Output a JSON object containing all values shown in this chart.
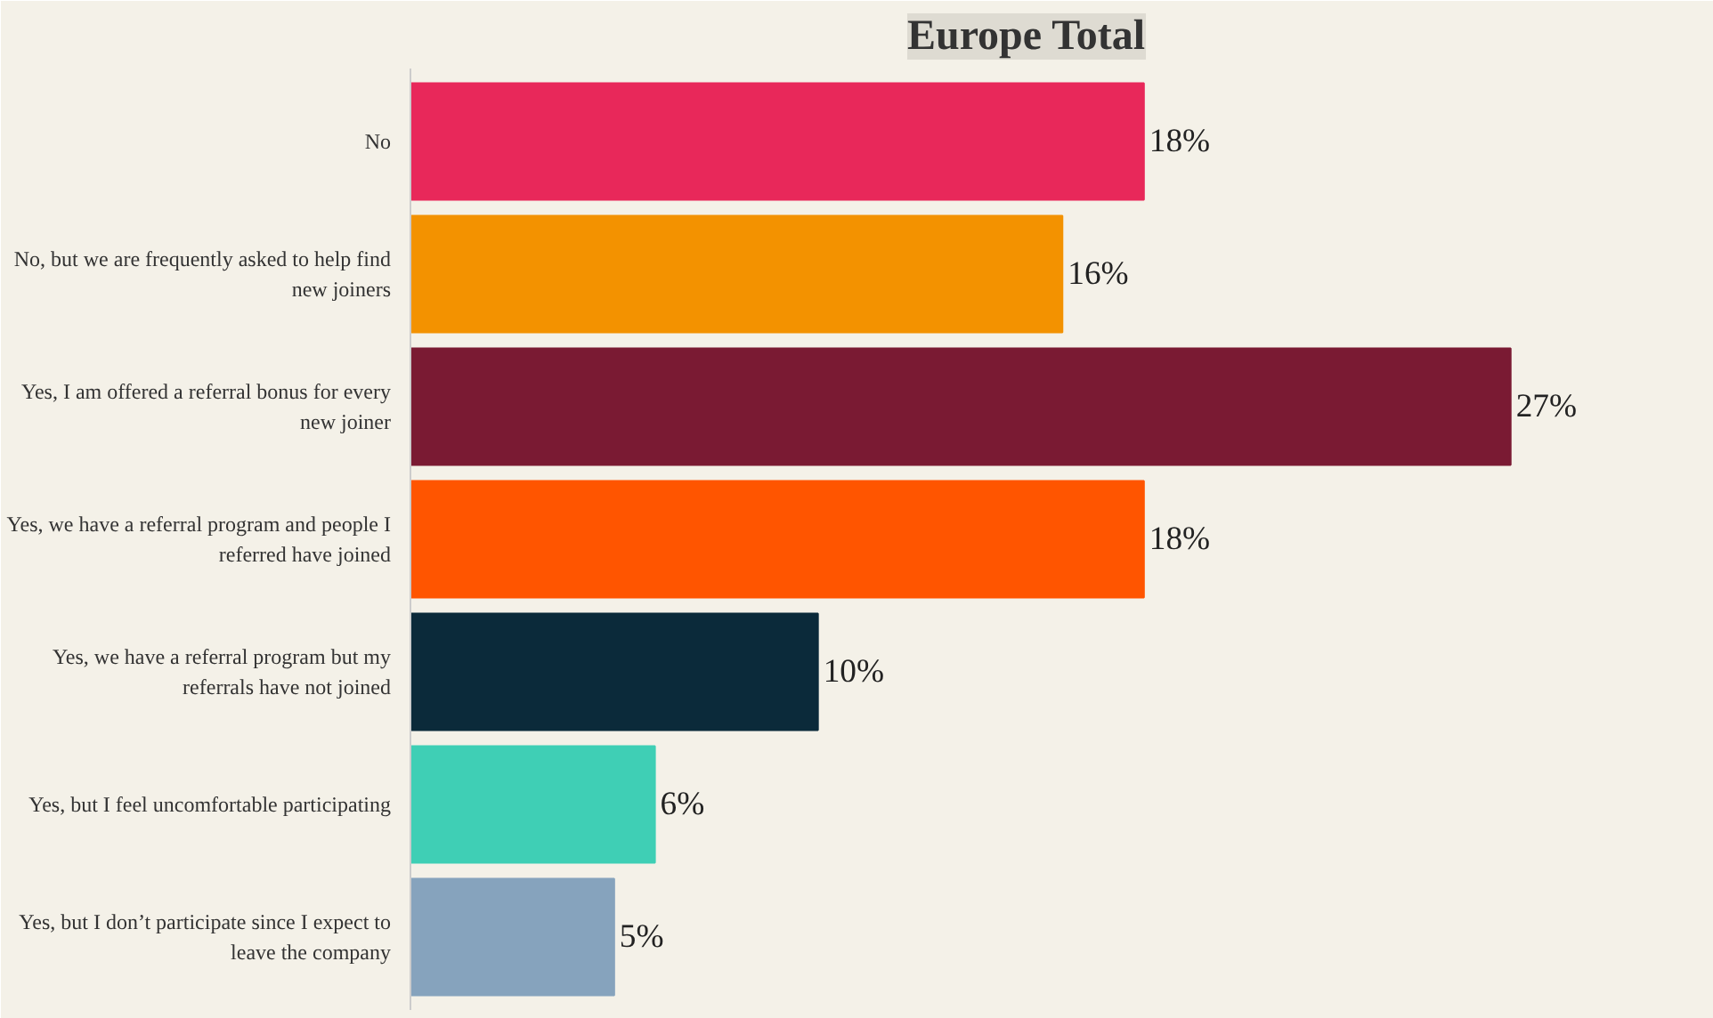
{
  "chart_data": {
    "type": "bar",
    "orientation": "horizontal",
    "title": "Europe Total",
    "categories": [
      "No",
      "No, but we are frequently asked to help find new joiners",
      "Yes, I am offered a referral bonus for every new joiner",
      "Yes, we have a referral program and people I referred have joined",
      "Yes, we have a referral program but my referrals have not joined",
      "Yes, but I feel uncomfortable participating",
      "Yes, but I don’t participate since I expect to leave the company"
    ],
    "values": [
      18,
      16,
      27,
      18,
      10,
      6,
      5
    ],
    "colors": [
      "#e8285a",
      "#f39200",
      "#7a1a33",
      "#ff5500",
      "#0b2a3a",
      "#3fcfb5",
      "#86a3bd"
    ],
    "value_labels": [
      "18%",
      "16%",
      "27%",
      "18%",
      "10%",
      "6%",
      "5%"
    ],
    "grid": false
  }
}
